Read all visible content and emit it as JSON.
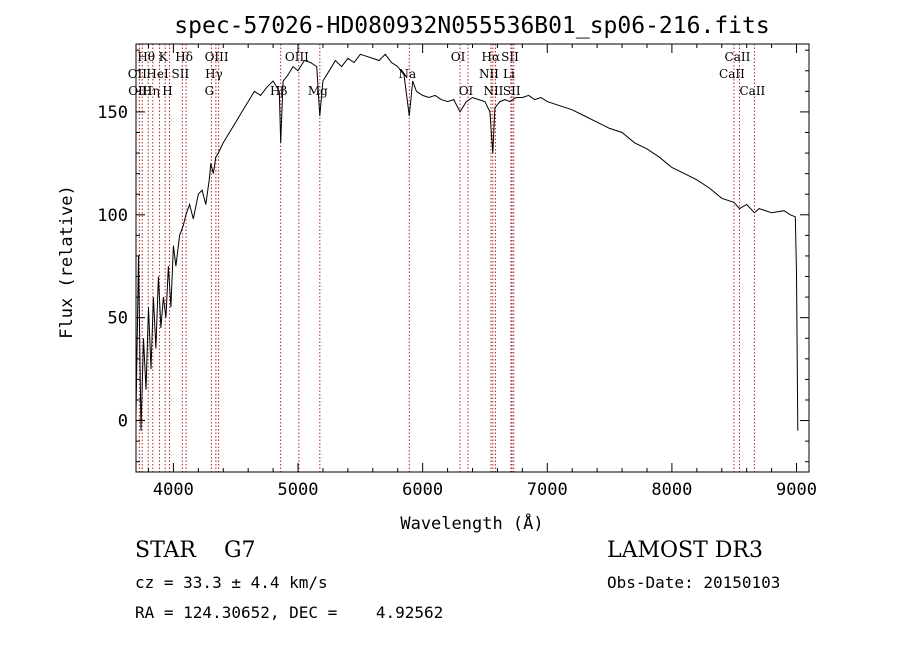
{
  "chart_data": {
    "type": "line",
    "title": "spec-57026-HD080932N055536B01_sp06-216.fits",
    "xlabel": "Wavelength (Å)",
    "ylabel": "Flux (relative)",
    "xlim": [
      3700,
      9100
    ],
    "ylim": [
      -25,
      183
    ],
    "xticks": [
      4000,
      5000,
      6000,
      7000,
      8000,
      9000
    ],
    "yticks": [
      0,
      50,
      100,
      150
    ],
    "grid": false,
    "line_color": "#000000",
    "marker_color": "#b22222",
    "series": [
      {
        "x": [
          3700,
          3720,
          3740,
          3760,
          3780,
          3800,
          3820,
          3840,
          3860,
          3880,
          3900,
          3920,
          3940,
          3960,
          3980,
          4000,
          4020,
          4050,
          4080,
          4100,
          4130,
          4160,
          4200,
          4230,
          4260,
          4290,
          4300,
          4320,
          4340,
          4360,
          4400,
          4450,
          4500,
          4550,
          4600,
          4650,
          4700,
          4750,
          4800,
          4850,
          4861,
          4880,
          4920,
          4960,
          5000,
          5050,
          5100,
          5150,
          5175,
          5200,
          5250,
          5300,
          5350,
          5400,
          5450,
          5500,
          5550,
          5600,
          5650,
          5700,
          5750,
          5800,
          5850,
          5893,
          5920,
          5950,
          6000,
          6050,
          6100,
          6150,
          6200,
          6250,
          6300,
          6350,
          6400,
          6450,
          6500,
          6540,
          6563,
          6580,
          6620,
          6660,
          6700,
          6750,
          6800,
          6850,
          6900,
          6950,
          7000,
          7100,
          7200,
          7300,
          7400,
          7500,
          7600,
          7700,
          7800,
          7900,
          8000,
          8100,
          8200,
          8300,
          8400,
          8498,
          8542,
          8600,
          8662,
          8700,
          8800,
          8900,
          8950,
          8990,
          9000,
          9010
        ],
        "y": [
          2,
          80,
          -5,
          40,
          15,
          55,
          25,
          60,
          35,
          70,
          45,
          60,
          50,
          75,
          55,
          85,
          75,
          90,
          95,
          100,
          105,
          98,
          110,
          112,
          105,
          118,
          125,
          120,
          128,
          130,
          135,
          140,
          145,
          150,
          155,
          160,
          158,
          162,
          165,
          160,
          135,
          165,
          168,
          172,
          170,
          175,
          174,
          172,
          148,
          165,
          170,
          175,
          172,
          176,
          174,
          178,
          177,
          176,
          175,
          178,
          174,
          172,
          168,
          148,
          165,
          160,
          158,
          157,
          158,
          156,
          155,
          156,
          150,
          155,
          157,
          156,
          155,
          150,
          130,
          152,
          155,
          156,
          155,
          157,
          157,
          158,
          156,
          157,
          155,
          153,
          151,
          148,
          145,
          142,
          140,
          135,
          132,
          128,
          123,
          120,
          117,
          113,
          108,
          106,
          103,
          105,
          101,
          103,
          101,
          102,
          100,
          99,
          72,
          -5
        ]
      }
    ],
    "lines": [
      {
        "label": "Hθ",
        "x": 3798,
        "row": 1
      },
      {
        "label": "OII",
        "x": 3727,
        "row": 2
      },
      {
        "label": "OIII",
        "x": 3750,
        "row": 3
      },
      {
        "label": "K",
        "x": 3934,
        "row": 1
      },
      {
        "label": "HeI",
        "x": 3889,
        "row": 2
      },
      {
        "label": "Hη",
        "x": 3835,
        "row": 3
      },
      {
        "label": "Hδ",
        "x": 4102,
        "row": 1
      },
      {
        "label": "SII",
        "x": 4072,
        "row": 2
      },
      {
        "label": "H",
        "x": 3969,
        "row": 3
      },
      {
        "label": "OIII",
        "x": 4363,
        "row": 1
      },
      {
        "label": "Hγ",
        "x": 4341,
        "row": 2
      },
      {
        "label": "G",
        "x": 4305,
        "row": 3
      },
      {
        "label": "Hβ",
        "x": 4861,
        "row": 3
      },
      {
        "label": "OIII",
        "x": 5007,
        "row": 1
      },
      {
        "label": "Mg",
        "x": 5175,
        "row": 3
      },
      {
        "label": "Na",
        "x": 5893,
        "row": 2
      },
      {
        "label": "OI",
        "x": 6300,
        "row": 1
      },
      {
        "label": "OI",
        "x": 6364,
        "row": 3
      },
      {
        "label": "Hα",
        "x": 6563,
        "row": 1
      },
      {
        "label": "SII",
        "x": 6717,
        "row": 1
      },
      {
        "label": "NII",
        "x": 6548,
        "row": 2
      },
      {
        "label": "Li",
        "x": 6708,
        "row": 2
      },
      {
        "label": "NII",
        "x": 6584,
        "row": 3
      },
      {
        "label": "SII",
        "x": 6731,
        "row": 3
      },
      {
        "label": "CaII",
        "x": 8542,
        "row": 1
      },
      {
        "label": "CaII",
        "x": 8498,
        "row": 2
      },
      {
        "label": "CaII",
        "x": 8662,
        "row": 3
      }
    ]
  },
  "annotations": {
    "object_class": "STAR    G7",
    "survey": "LAMOST DR3",
    "redshift": "cz = 33.3 ± 4.4 km/s",
    "obs_date": "Obs-Date: 20150103",
    "coordinates": "RA = 124.30652, DEC =    4.92562"
  }
}
